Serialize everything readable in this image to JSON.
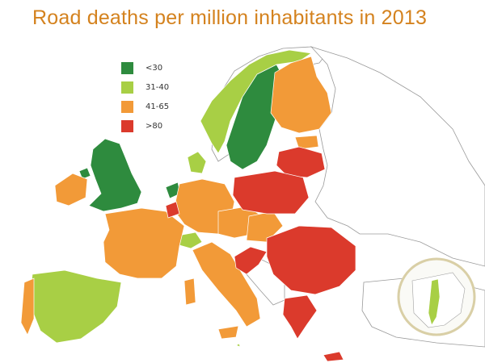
{
  "title": "Road deaths per million inhabitants in 2013",
  "colors": {
    "title": "#d4821e",
    "band_lt30": "#2e8b3e",
    "band_31_40": "#a8cf45",
    "band_41_65": "#f29a38",
    "band_gt80": "#db3a2c",
    "nodata": "#ffffff",
    "border": "#9a9a9a"
  },
  "legend": [
    {
      "label": "<30",
      "color_key": "band_lt30"
    },
    {
      "label": "31-40",
      "color_key": "band_31_40"
    },
    {
      "label": "41-65",
      "color_key": "band_41_65"
    },
    {
      "label": ">80",
      "color_key": "band_gt80"
    }
  ]
}
